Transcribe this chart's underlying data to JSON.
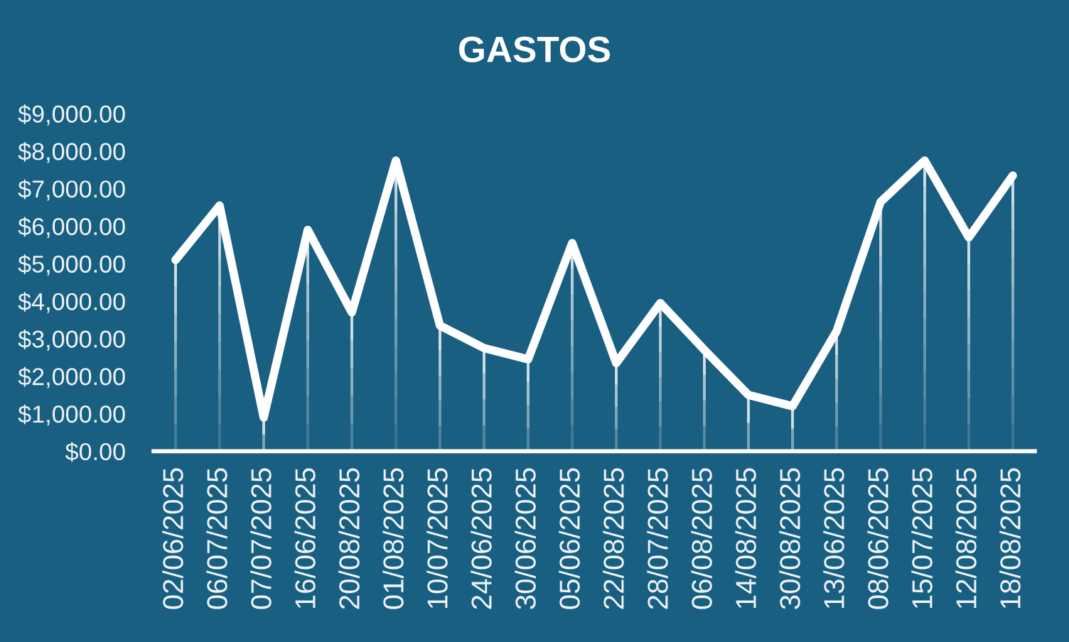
{
  "chart_data": {
    "type": "line",
    "title": "GASTOS",
    "categories": [
      "02/06/2025",
      "06/07/2025",
      "07/07/2025",
      "16/06/2025",
      "20/08/2025",
      "01/08/2025",
      "10/07/2025",
      "24/06/2025",
      "30/06/2025",
      "05/06/2025",
      "22/08/2025",
      "28/07/2025",
      "06/08/2025",
      "14/08/2025",
      "30/08/2025",
      "13/06/2025",
      "08/06/2025",
      "15/07/2025",
      "12/08/2025",
      "18/08/2025"
    ],
    "values": [
      5100,
      6550,
      900,
      5900,
      3700,
      7750,
      3350,
      2750,
      2450,
      5550,
      2350,
      3950,
      2700,
      1500,
      1200,
      3200,
      6650,
      7750,
      5700,
      7350
    ],
    "color": "#ffffff",
    "ylim": [
      0,
      9000
    ],
    "yticks": [
      {
        "value": 0,
        "label": "$0.00"
      },
      {
        "value": 1000,
        "label": "$1,000.00"
      },
      {
        "value": 2000,
        "label": "$2,000.00"
      },
      {
        "value": 3000,
        "label": "$3,000.00"
      },
      {
        "value": 4000,
        "label": "$4,000.00"
      },
      {
        "value": 5000,
        "label": "$5,000.00"
      },
      {
        "value": 6000,
        "label": "$6,000.00"
      },
      {
        "value": 7000,
        "label": "$7,000.00"
      },
      {
        "value": 8000,
        "label": "$8,000.00"
      },
      {
        "value": 9000,
        "label": "$9,000.00"
      }
    ]
  }
}
